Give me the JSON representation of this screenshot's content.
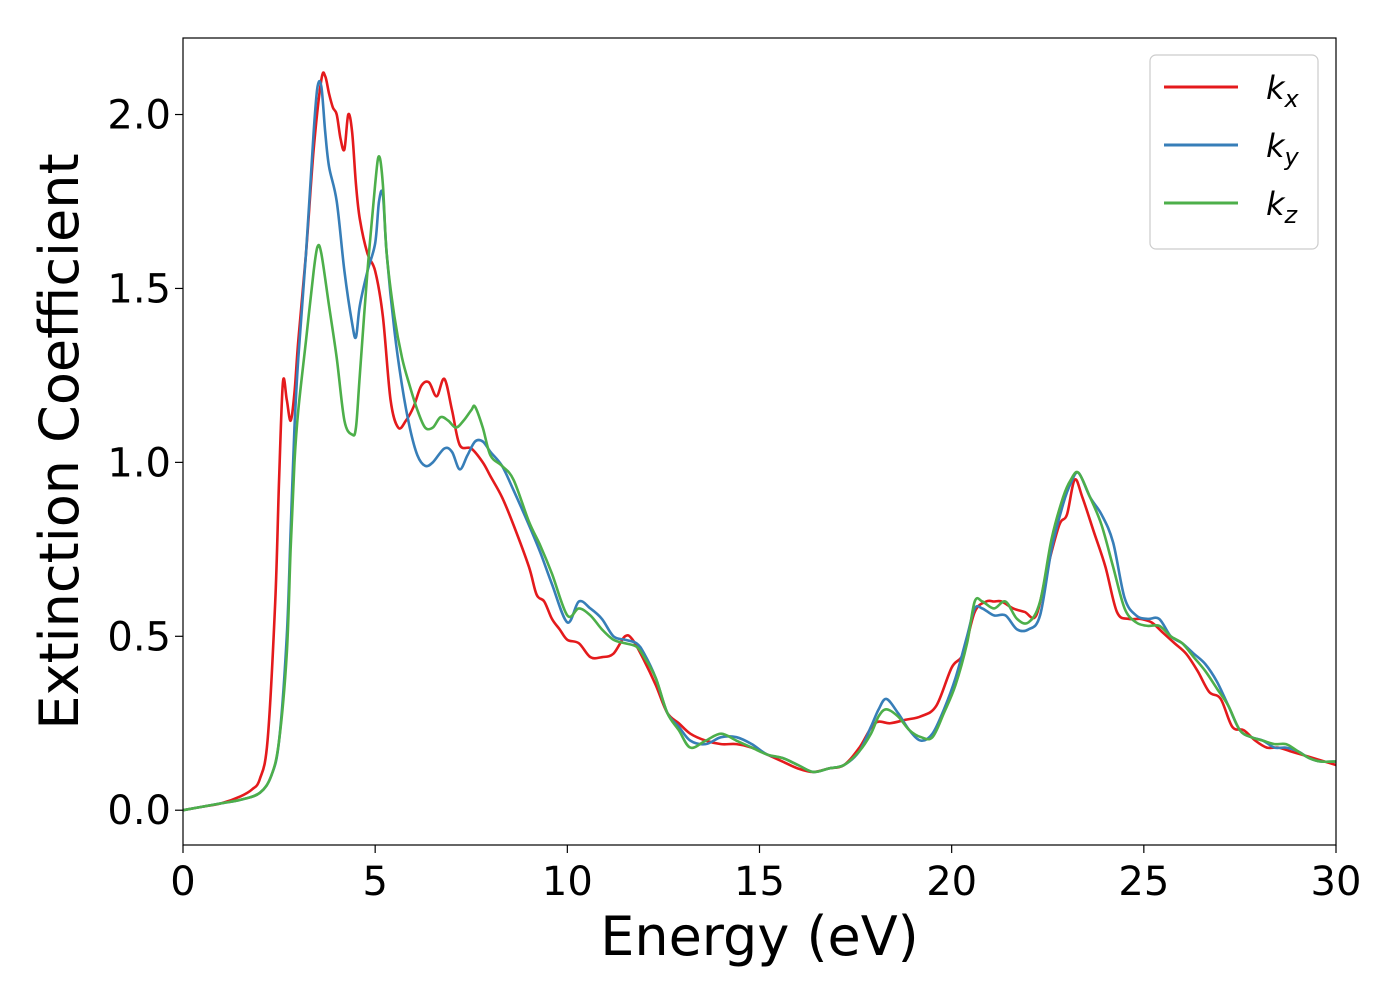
{
  "chart_data": {
    "type": "line",
    "xlabel": "Energy (eV)",
    "ylabel": "Extinction Coefficient",
    "xlim": [
      0,
      30
    ],
    "ylim": [
      -0.1,
      2.22
    ],
    "xticks": [
      0,
      5,
      10,
      15,
      20,
      25,
      30
    ],
    "yticks": [
      0.0,
      0.5,
      1.0,
      1.5,
      2.0
    ],
    "xtick_labels": [
      "0",
      "5",
      "10",
      "15",
      "20",
      "25",
      "30"
    ],
    "ytick_labels": [
      "0.0",
      "0.5",
      "1.0",
      "1.5",
      "2.0"
    ],
    "grid": false,
    "legend_position": "top-right",
    "series": [
      {
        "name": "k_x",
        "label_main": "k",
        "label_sub": "x",
        "color": "#e41a1c",
        "x": [
          0,
          0.5,
          1,
          1.5,
          1.8,
          2.0,
          2.2,
          2.4,
          2.5,
          2.6,
          2.7,
          2.8,
          2.9,
          3.0,
          3.2,
          3.4,
          3.6,
          3.7,
          3.8,
          3.9,
          4.0,
          4.1,
          4.2,
          4.3,
          4.4,
          4.5,
          4.6,
          4.8,
          5.0,
          5.2,
          5.4,
          5.6,
          5.8,
          6.0,
          6.2,
          6.4,
          6.6,
          6.8,
          7.0,
          7.2,
          7.5,
          7.8,
          8.0,
          8.3,
          8.6,
          9.0,
          9.2,
          9.4,
          9.6,
          9.8,
          10.0,
          10.3,
          10.6,
          10.9,
          11.2,
          11.5,
          11.7,
          12.0,
          12.3,
          12.6,
          12.9,
          13.2,
          13.6,
          14.0,
          14.4,
          14.8,
          15.2,
          15.6,
          16.0,
          16.4,
          16.8,
          17.2,
          17.6,
          18.0,
          18.4,
          18.8,
          19.2,
          19.6,
          20.0,
          20.3,
          20.6,
          20.9,
          21.1,
          21.3,
          21.6,
          21.9,
          22.2,
          22.5,
          22.8,
          23.0,
          23.2,
          23.4,
          23.7,
          24.0,
          24.3,
          24.6,
          24.9,
          25.2,
          25.5,
          25.8,
          26.1,
          26.4,
          26.7,
          27.0,
          27.3,
          27.6,
          27.9,
          28.2,
          28.5,
          28.8,
          29.1,
          29.4,
          29.7,
          30.0
        ],
        "y": [
          0.0,
          0.01,
          0.02,
          0.04,
          0.06,
          0.09,
          0.2,
          0.6,
          0.95,
          1.23,
          1.18,
          1.12,
          1.2,
          1.35,
          1.6,
          1.9,
          2.1,
          2.11,
          2.06,
          2.02,
          2.0,
          1.93,
          1.9,
          2.0,
          1.95,
          1.8,
          1.7,
          1.6,
          1.55,
          1.42,
          1.18,
          1.1,
          1.12,
          1.16,
          1.22,
          1.23,
          1.19,
          1.24,
          1.15,
          1.05,
          1.04,
          1.0,
          0.96,
          0.9,
          0.82,
          0.7,
          0.62,
          0.6,
          0.55,
          0.52,
          0.49,
          0.48,
          0.44,
          0.44,
          0.45,
          0.5,
          0.49,
          0.43,
          0.36,
          0.28,
          0.25,
          0.22,
          0.2,
          0.19,
          0.19,
          0.18,
          0.16,
          0.14,
          0.12,
          0.11,
          0.12,
          0.13,
          0.18,
          0.25,
          0.25,
          0.26,
          0.27,
          0.3,
          0.41,
          0.45,
          0.57,
          0.6,
          0.6,
          0.6,
          0.58,
          0.57,
          0.56,
          0.7,
          0.82,
          0.85,
          0.95,
          0.9,
          0.8,
          0.7,
          0.57,
          0.55,
          0.55,
          0.54,
          0.51,
          0.48,
          0.45,
          0.4,
          0.34,
          0.32,
          0.24,
          0.23,
          0.2,
          0.18,
          0.18,
          0.17,
          0.16,
          0.15,
          0.14,
          0.13
        ]
      },
      {
        "name": "k_y",
        "label_main": "k",
        "label_sub": "y",
        "color": "#377eb8",
        "x": [
          0,
          0.5,
          1,
          1.5,
          2.0,
          2.3,
          2.5,
          2.7,
          2.8,
          2.9,
          3.0,
          3.2,
          3.4,
          3.5,
          3.6,
          3.7,
          3.8,
          4.0,
          4.2,
          4.4,
          4.5,
          4.6,
          4.8,
          5.0,
          5.1,
          5.2,
          5.3,
          5.5,
          5.7,
          5.9,
          6.1,
          6.3,
          6.5,
          6.8,
          7.0,
          7.2,
          7.4,
          7.6,
          7.8,
          8.0,
          8.3,
          8.6,
          9.0,
          9.3,
          9.6,
          10.0,
          10.3,
          10.6,
          10.9,
          11.2,
          11.5,
          11.8,
          12.0,
          12.3,
          12.6,
          12.9,
          13.2,
          13.6,
          14.0,
          14.4,
          14.8,
          15.2,
          15.6,
          16.0,
          16.4,
          16.8,
          17.2,
          17.6,
          17.9,
          18.1,
          18.3,
          18.6,
          18.9,
          19.2,
          19.5,
          19.8,
          20.1,
          20.4,
          20.6,
          20.8,
          21.1,
          21.4,
          21.7,
          22.0,
          22.3,
          22.6,
          22.9,
          23.1,
          23.3,
          23.6,
          23.9,
          24.2,
          24.5,
          24.8,
          25.1,
          25.4,
          25.7,
          26.0,
          26.3,
          26.6,
          26.9,
          27.2,
          27.5,
          27.8,
          28.1,
          28.4,
          28.7,
          29.0,
          29.3,
          29.6,
          30.0
        ],
        "y": [
          0.0,
          0.01,
          0.02,
          0.03,
          0.05,
          0.1,
          0.2,
          0.5,
          0.8,
          1.1,
          1.3,
          1.6,
          1.95,
          2.08,
          2.08,
          1.95,
          1.85,
          1.75,
          1.55,
          1.4,
          1.36,
          1.45,
          1.55,
          1.63,
          1.75,
          1.77,
          1.6,
          1.38,
          1.22,
          1.1,
          1.02,
          0.99,
          1.0,
          1.04,
          1.03,
          0.98,
          1.02,
          1.06,
          1.06,
          1.03,
          0.99,
          0.92,
          0.82,
          0.74,
          0.65,
          0.54,
          0.6,
          0.58,
          0.55,
          0.5,
          0.49,
          0.48,
          0.45,
          0.38,
          0.28,
          0.24,
          0.2,
          0.19,
          0.21,
          0.21,
          0.19,
          0.16,
          0.15,
          0.13,
          0.11,
          0.12,
          0.13,
          0.17,
          0.24,
          0.29,
          0.32,
          0.28,
          0.23,
          0.2,
          0.22,
          0.29,
          0.38,
          0.5,
          0.58,
          0.58,
          0.56,
          0.56,
          0.52,
          0.52,
          0.56,
          0.75,
          0.88,
          0.94,
          0.97,
          0.9,
          0.85,
          0.77,
          0.61,
          0.56,
          0.55,
          0.55,
          0.5,
          0.48,
          0.45,
          0.42,
          0.37,
          0.3,
          0.23,
          0.21,
          0.2,
          0.18,
          0.18,
          0.17,
          0.15,
          0.14,
          0.14
        ]
      },
      {
        "name": "k_z",
        "label_main": "k",
        "label_sub": "z",
        "color": "#4daf4a",
        "x": [
          0,
          0.5,
          1,
          1.5,
          2.0,
          2.3,
          2.5,
          2.7,
          2.8,
          2.9,
          3.0,
          3.2,
          3.4,
          3.5,
          3.6,
          3.8,
          4.0,
          4.2,
          4.4,
          4.5,
          4.6,
          4.8,
          5.0,
          5.1,
          5.2,
          5.3,
          5.5,
          5.7,
          5.9,
          6.1,
          6.3,
          6.5,
          6.7,
          6.9,
          7.1,
          7.3,
          7.5,
          7.6,
          7.8,
          8.0,
          8.3,
          8.6,
          9.0,
          9.3,
          9.6,
          10.0,
          10.3,
          10.6,
          10.9,
          11.2,
          11.5,
          11.8,
          12.0,
          12.3,
          12.6,
          12.9,
          13.2,
          13.6,
          14.0,
          14.4,
          14.8,
          15.2,
          15.6,
          16.0,
          16.4,
          16.8,
          17.2,
          17.6,
          17.9,
          18.1,
          18.3,
          18.6,
          18.9,
          19.2,
          19.5,
          19.8,
          20.1,
          20.4,
          20.6,
          20.8,
          21.1,
          21.4,
          21.7,
          22.0,
          22.3,
          22.6,
          22.9,
          23.1,
          23.3,
          23.6,
          23.9,
          24.2,
          24.5,
          24.8,
          25.1,
          25.4,
          25.7,
          26.0,
          26.3,
          26.6,
          26.9,
          27.2,
          27.5,
          27.8,
          28.1,
          28.4,
          28.7,
          29.0,
          29.3,
          29.6,
          30.0
        ],
        "y": [
          0.0,
          0.01,
          0.02,
          0.03,
          0.05,
          0.1,
          0.2,
          0.45,
          0.75,
          1.0,
          1.15,
          1.35,
          1.55,
          1.62,
          1.6,
          1.45,
          1.3,
          1.12,
          1.08,
          1.1,
          1.25,
          1.55,
          1.8,
          1.88,
          1.8,
          1.6,
          1.42,
          1.3,
          1.22,
          1.15,
          1.1,
          1.1,
          1.13,
          1.12,
          1.1,
          1.12,
          1.15,
          1.16,
          1.1,
          1.02,
          0.99,
          0.95,
          0.83,
          0.76,
          0.68,
          0.56,
          0.58,
          0.56,
          0.52,
          0.49,
          0.48,
          0.47,
          0.44,
          0.38,
          0.28,
          0.23,
          0.18,
          0.2,
          0.22,
          0.2,
          0.18,
          0.16,
          0.15,
          0.13,
          0.11,
          0.12,
          0.13,
          0.17,
          0.22,
          0.27,
          0.29,
          0.27,
          0.23,
          0.21,
          0.21,
          0.28,
          0.36,
          0.48,
          0.6,
          0.6,
          0.58,
          0.6,
          0.55,
          0.54,
          0.6,
          0.78,
          0.9,
          0.95,
          0.97,
          0.9,
          0.82,
          0.7,
          0.58,
          0.54,
          0.53,
          0.53,
          0.5,
          0.48,
          0.44,
          0.4,
          0.35,
          0.3,
          0.23,
          0.21,
          0.2,
          0.19,
          0.19,
          0.17,
          0.15,
          0.14,
          0.14
        ]
      }
    ]
  }
}
